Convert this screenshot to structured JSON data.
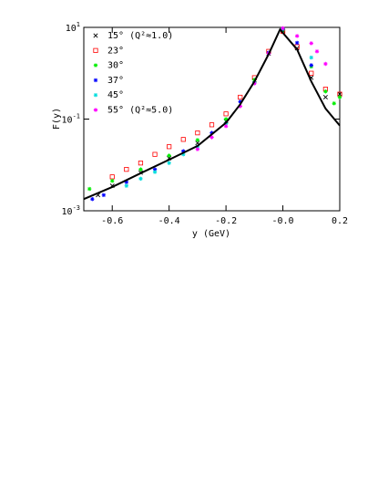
{
  "chart_data": {
    "type": "scatter",
    "x_label": "y (GeV)",
    "y_label": "F(y)",
    "log_y": true,
    "xlim": [
      -0.7,
      0.2
    ],
    "xticks": [
      -0.6,
      -0.4,
      -0.2,
      {
        "value": 0,
        "label": "-0.0"
      },
      0.2
    ],
    "ylim": [
      0.001,
      10
    ],
    "yticks": [
      {
        "value": 10,
        "label": "10",
        "exponent": "1"
      },
      {
        "value": 0.1,
        "label": "10",
        "exponent": "-1"
      },
      {
        "value": 0.001,
        "label": "10",
        "exponent": "-3"
      }
    ],
    "series": [
      {
        "name": "15° (Q²≈1.0)",
        "color": "#000000",
        "marker": "cross",
        "x": [
          -0.65,
          -0.6,
          -0.5,
          -0.4,
          -0.3,
          -0.2,
          -0.1,
          -0.05,
          0,
          0.05,
          0.1,
          0.15,
          0.2
        ],
        "values": [
          0.0022,
          0.0035,
          0.0068,
          0.014,
          0.03,
          0.09,
          0.7,
          2.7,
          8.5,
          3.5,
          0.8,
          0.3,
          0.35
        ]
      },
      {
        "name": "23°",
        "color": "#ff0000",
        "marker": "square",
        "x": [
          -0.6,
          -0.55,
          -0.5,
          -0.45,
          -0.4,
          -0.35,
          -0.3,
          -0.25,
          -0.2,
          -0.15,
          -0.1,
          -0.05,
          0,
          0.05,
          0.1,
          0.15,
          0.2
        ],
        "values": [
          0.0055,
          0.008,
          0.011,
          0.017,
          0.025,
          0.036,
          0.05,
          0.075,
          0.13,
          0.3,
          0.8,
          3.0,
          8.2,
          3.8,
          1.0,
          0.45,
          0.35
        ]
      },
      {
        "name": "30°",
        "color": "#00ee00",
        "marker": "star",
        "x": [
          -0.68,
          -0.6,
          -0.5,
          -0.4,
          -0.3,
          -0.2,
          -0.1,
          0,
          0.1,
          0.15,
          0.18,
          0.2
        ],
        "values": [
          0.003,
          0.0045,
          0.008,
          0.016,
          0.035,
          0.1,
          0.72,
          8.8,
          1.4,
          0.4,
          0.22,
          0.3
        ]
      },
      {
        "name": "37°",
        "color": "#0000ff",
        "marker": "star",
        "x": [
          -0.67,
          -0.63,
          -0.55,
          -0.45,
          -0.35,
          -0.25,
          -0.15,
          -0.05,
          0,
          0.05,
          0.1
        ],
        "values": [
          0.0018,
          0.0022,
          0.0042,
          0.008,
          0.02,
          0.05,
          0.24,
          2.8,
          9.2,
          4.6,
          1.5
        ]
      },
      {
        "name": "45°",
        "color": "#00dddd",
        "marker": "star",
        "x": [
          -0.55,
          -0.5,
          -0.45,
          -0.4,
          -0.35,
          -0.3,
          -0.2,
          -0.1,
          0,
          0.1
        ],
        "values": [
          0.0035,
          0.005,
          0.007,
          0.011,
          0.017,
          0.025,
          0.08,
          0.62,
          9.4,
          2.2
        ]
      },
      {
        "name": "55° (Q²≈5.0)",
        "color": "#ff00ff",
        "marker": "star",
        "x": [
          -0.3,
          -0.25,
          -0.2,
          -0.15,
          -0.1,
          -0.05,
          0,
          0.05,
          0.1,
          0.12,
          0.15
        ],
        "values": [
          0.022,
          0.04,
          0.07,
          0.19,
          0.6,
          2.7,
          9.6,
          6.5,
          4.5,
          3.0,
          1.6
        ]
      },
      {
        "color": "#000000",
        "marker": "line",
        "x": [
          -0.7,
          -0.6,
          -0.5,
          -0.4,
          -0.3,
          -0.2,
          -0.15,
          -0.1,
          -0.05,
          -0.01,
          0.05,
          0.1,
          0.15,
          0.2
        ],
        "values": [
          0.0018,
          0.0033,
          0.0066,
          0.013,
          0.026,
          0.083,
          0.21,
          0.66,
          2.6,
          9.0,
          3.3,
          0.66,
          0.17,
          0.072
        ]
      }
    ]
  }
}
